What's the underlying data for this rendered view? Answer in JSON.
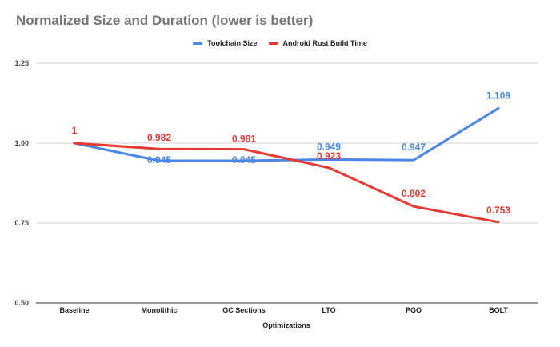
{
  "chart_data": {
    "type": "line",
    "title": "Normalized Size and Duration (lower is better)",
    "xlabel": "Optimizations",
    "ylabel": "",
    "categories": [
      "Baseline",
      "Monolithic",
      "GC Sections",
      "LTO",
      "PGO",
      "BOLT"
    ],
    "ylim": [
      0.5,
      1.25
    ],
    "yticks": [
      "0.50",
      "0.75",
      "1.00",
      "1.25"
    ],
    "ytick_values": [
      0.5,
      0.75,
      1.0,
      1.25
    ],
    "grid": true,
    "legend_position": "top-center",
    "series": [
      {
        "name": "Toolchain Size",
        "color": "#4a86e8",
        "values": [
          1,
          0.945,
          0.945,
          0.949,
          0.947,
          1.109
        ],
        "labels": [
          "",
          "0.945",
          "0.945",
          "0.949",
          "0.947",
          "1.109"
        ]
      },
      {
        "name": "Android Rust Build Time",
        "color": "#e53935",
        "values": [
          1,
          0.982,
          0.981,
          0.923,
          0.802,
          0.753
        ],
        "labels": [
          "1",
          "0.982",
          "0.981",
          "0.923",
          "0.802",
          "0.753"
        ]
      }
    ]
  }
}
